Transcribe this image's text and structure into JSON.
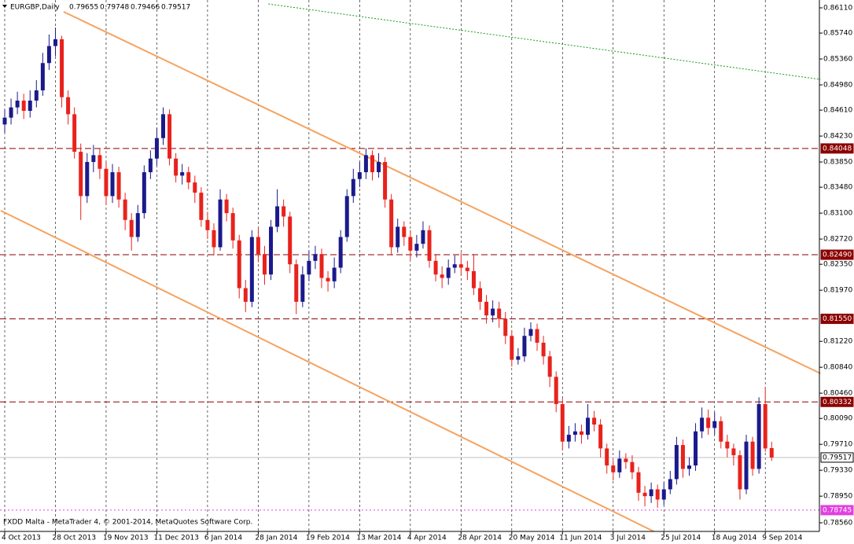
{
  "chart_data": {
    "type": "candlestick",
    "header": {
      "symbol": "EURGBP,Daily",
      "values": [
        0.79655,
        0.79748,
        0.79466,
        0.79517
      ]
    },
    "footer": "FXDD Malta - MetaTrader 4, © 2001-2014, MetaQuotes Software Corp.",
    "up_color": "#1a1a8c",
    "down_color": "#e8221c",
    "categories": [
      "4 Oct 2013",
      null,
      null,
      null,
      null,
      null,
      null,
      null,
      "28 Oct 2013",
      null,
      null,
      null,
      null,
      null,
      null,
      null,
      "19 Nov 2013",
      null,
      null,
      null,
      null,
      null,
      null,
      null,
      "11 Dec 2013",
      null,
      null,
      null,
      null,
      null,
      null,
      null,
      "6 Jan 2014",
      null,
      null,
      null,
      null,
      null,
      null,
      null,
      "28 Jan 2014",
      null,
      null,
      null,
      null,
      null,
      null,
      null,
      "19 Feb 2014",
      null,
      null,
      null,
      null,
      null,
      null,
      null,
      "13 Mar 2014",
      null,
      null,
      null,
      null,
      null,
      null,
      null,
      "4 Apr 2014",
      null,
      null,
      null,
      null,
      null,
      null,
      null,
      "28 Apr 2014",
      null,
      null,
      null,
      null,
      null,
      null,
      null,
      "20 May 2014",
      null,
      null,
      null,
      null,
      null,
      null,
      null,
      "11 Jun 2014",
      null,
      null,
      null,
      null,
      null,
      null,
      null,
      "3 Jul 2014",
      null,
      null,
      null,
      null,
      null,
      null,
      null,
      "25 Jul 2014",
      null,
      null,
      null,
      null,
      null,
      null,
      null,
      "18 Aug 2014",
      null,
      null,
      null,
      null,
      null,
      null,
      null,
      "9 Sep 2014",
      null
    ],
    "open": [
      0.844,
      0.845,
      0.8465,
      0.8475,
      0.846,
      0.8475,
      0.849,
      0.853,
      0.8555,
      0.8565,
      0.848,
      0.8455,
      0.84,
      0.8335,
      0.8385,
      0.8395,
      0.8375,
      0.8335,
      0.837,
      0.833,
      0.83,
      0.8275,
      0.831,
      0.837,
      0.839,
      0.842,
      0.8455,
      0.839,
      0.8365,
      0.837,
      0.8355,
      0.834,
      0.83,
      0.8285,
      0.826,
      0.833,
      0.831,
      0.827,
      0.82,
      0.818,
      0.8275,
      0.825,
      0.822,
      0.829,
      0.832,
      0.8305,
      0.8235,
      0.818,
      0.822,
      0.824,
      0.825,
      0.8215,
      0.821,
      0.823,
      0.8275,
      0.8335,
      0.836,
      0.837,
      0.8395,
      0.837,
      0.8385,
      0.833,
      0.826,
      0.829,
      0.8275,
      0.8255,
      0.8265,
      0.8285,
      0.824,
      0.822,
      0.8215,
      0.823,
      0.8235,
      0.823,
      0.8225,
      0.82,
      0.818,
      0.816,
      0.817,
      0.8155,
      0.813,
      0.8095,
      0.81,
      0.813,
      0.814,
      0.812,
      0.81,
      0.807,
      0.803,
      0.7975,
      0.7985,
      0.799,
      0.7985,
      0.801,
      0.8,
      0.7965,
      0.794,
      0.793,
      0.795,
      0.7945,
      0.793,
      0.79,
      0.7895,
      0.7905,
      0.789,
      0.7905,
      0.792,
      0.797,
      0.7935,
      0.794,
      0.799,
      0.801,
      0.7995,
      0.8005,
      0.7975,
      0.7965,
      0.7955,
      0.7905,
      0.7975,
      0.7935,
      0.803,
      0.79655
    ],
    "high": [
      0.8462,
      0.8478,
      0.8488,
      0.8485,
      0.849,
      0.8505,
      0.8545,
      0.8572,
      0.8582,
      0.857,
      0.849,
      0.8465,
      0.8412,
      0.8398,
      0.841,
      0.8405,
      0.8385,
      0.8382,
      0.8378,
      0.834,
      0.831,
      0.8322,
      0.838,
      0.8402,
      0.8435,
      0.8465,
      0.8462,
      0.8398,
      0.8382,
      0.8378,
      0.8365,
      0.8348,
      0.8312,
      0.8295,
      0.8345,
      0.8338,
      0.8318,
      0.8278,
      0.8212,
      0.8285,
      0.8288,
      0.8262,
      0.83,
      0.8345,
      0.833,
      0.8312,
      0.8242,
      0.8232,
      0.8255,
      0.8262,
      0.8258,
      0.8225,
      0.8245,
      0.8285,
      0.8345,
      0.8375,
      0.8385,
      0.8405,
      0.8402,
      0.8398,
      0.8392,
      0.8338,
      0.8302,
      0.8298,
      0.8285,
      0.8278,
      0.8298,
      0.8292,
      0.825,
      0.8232,
      0.8242,
      0.8248,
      0.8252,
      0.824,
      0.825,
      0.821,
      0.819,
      0.8182,
      0.818,
      0.8165,
      0.8138,
      0.8112,
      0.8142,
      0.815,
      0.8148,
      0.813,
      0.8108,
      0.8078,
      0.8038,
      0.7998,
      0.8002,
      0.8,
      0.803,
      0.802,
      0.8008,
      0.7972,
      0.7948,
      0.7962,
      0.7958,
      0.7955,
      0.7938,
      0.791,
      0.7915,
      0.7912,
      0.7915,
      0.7932,
      0.7982,
      0.7978,
      0.7952,
      0.8002,
      0.8025,
      0.8022,
      0.8018,
      0.8012,
      0.7985,
      0.7972,
      0.7962,
      0.7985,
      0.7982,
      0.804,
      0.8055,
      0.79748
    ],
    "low": [
      0.8428,
      0.844,
      0.8455,
      0.8448,
      0.845,
      0.8465,
      0.8482,
      0.852,
      0.854,
      0.8465,
      0.844,
      0.839,
      0.83,
      0.8325,
      0.837,
      0.836,
      0.8322,
      0.8325,
      0.8318,
      0.8285,
      0.8255,
      0.8268,
      0.8302,
      0.836,
      0.838,
      0.841,
      0.838,
      0.8355,
      0.8352,
      0.8345,
      0.8325,
      0.829,
      0.8272,
      0.8248,
      0.8255,
      0.8298,
      0.8258,
      0.8185,
      0.8165,
      0.8172,
      0.8238,
      0.8205,
      0.8212,
      0.8282,
      0.829,
      0.8222,
      0.8162,
      0.8172,
      0.821,
      0.8228,
      0.82,
      0.8195,
      0.82,
      0.8222,
      0.8268,
      0.8325,
      0.8348,
      0.836,
      0.8358,
      0.8362,
      0.8318,
      0.8248,
      0.8252,
      0.8262,
      0.8242,
      0.8245,
      0.8258,
      0.823,
      0.821,
      0.82,
      0.8205,
      0.8222,
      0.8218,
      0.8212,
      0.819,
      0.8168,
      0.8148,
      0.815,
      0.8142,
      0.8118,
      0.8085,
      0.8088,
      0.8092,
      0.8122,
      0.8108,
      0.8088,
      0.8055,
      0.8018,
      0.7962,
      0.7965,
      0.7975,
      0.7972,
      0.7978,
      0.799,
      0.7952,
      0.7928,
      0.7918,
      0.7922,
      0.7935,
      0.792,
      0.7888,
      0.788,
      0.7885,
      0.7878,
      0.7882,
      0.7898,
      0.7912,
      0.7922,
      0.7925,
      0.7932,
      0.798,
      0.7985,
      0.7985,
      0.7965,
      0.7952,
      0.794,
      0.789,
      0.7898,
      0.7925,
      0.7928,
      0.796,
      0.79466
    ],
    "close": [
      0.845,
      0.8465,
      0.8475,
      0.846,
      0.8475,
      0.849,
      0.853,
      0.8555,
      0.8565,
      0.848,
      0.8455,
      0.84,
      0.8335,
      0.8385,
      0.8395,
      0.8375,
      0.8335,
      0.837,
      0.833,
      0.83,
      0.8275,
      0.831,
      0.837,
      0.839,
      0.842,
      0.8455,
      0.839,
      0.8365,
      0.837,
      0.8355,
      0.834,
      0.83,
      0.8285,
      0.826,
      0.833,
      0.831,
      0.827,
      0.82,
      0.818,
      0.8275,
      0.825,
      0.822,
      0.829,
      0.832,
      0.8305,
      0.8235,
      0.818,
      0.822,
      0.824,
      0.825,
      0.8215,
      0.821,
      0.823,
      0.8275,
      0.8335,
      0.836,
      0.837,
      0.8395,
      0.837,
      0.8385,
      0.833,
      0.826,
      0.829,
      0.8275,
      0.8255,
      0.8265,
      0.8285,
      0.824,
      0.822,
      0.8215,
      0.823,
      0.8235,
      0.823,
      0.8225,
      0.82,
      0.818,
      0.816,
      0.817,
      0.8155,
      0.813,
      0.8095,
      0.81,
      0.813,
      0.814,
      0.812,
      0.81,
      0.807,
      0.803,
      0.7975,
      0.7985,
      0.799,
      0.7985,
      0.801,
      0.8,
      0.7965,
      0.794,
      0.793,
      0.795,
      0.7945,
      0.793,
      0.79,
      0.7895,
      0.7905,
      0.789,
      0.7905,
      0.792,
      0.797,
      0.7935,
      0.794,
      0.799,
      0.801,
      0.7995,
      0.8005,
      0.7975,
      0.7965,
      0.7955,
      0.7905,
      0.7975,
      0.7935,
      0.803,
      0.7965,
      0.79517
    ],
    "ylim": [
      0.78433,
      0.86225
    ],
    "yticks": [
      {
        "value": 0.8611,
        "label": "0.86110"
      },
      {
        "value": 0.8574,
        "label": "0.85740"
      },
      {
        "value": 0.8536,
        "label": "0.85360"
      },
      {
        "value": 0.8498,
        "label": "0.84980"
      },
      {
        "value": 0.8461,
        "label": "0.84610"
      },
      {
        "value": 0.8423,
        "label": "0.84230"
      },
      {
        "value": 0.8385,
        "label": "0.83850"
      },
      {
        "value": 0.8348,
        "label": "0.83480"
      },
      {
        "value": 0.831,
        "label": "0.83100"
      },
      {
        "value": 0.8272,
        "label": "0.82720"
      },
      {
        "value": 0.8235,
        "label": "0.82350"
      },
      {
        "value": 0.8197,
        "label": "0.81970"
      },
      {
        "value": 0.8122,
        "label": "0.81220"
      },
      {
        "value": 0.8084,
        "label": "0.80840"
      },
      {
        "value": 0.8046,
        "label": "0.80460"
      },
      {
        "value": 0.8009,
        "label": "0.80090"
      },
      {
        "value": 0.7971,
        "label": "0.79710"
      },
      {
        "value": 0.7933,
        "label": "0.79330"
      },
      {
        "value": 0.7895,
        "label": "0.78950"
      },
      {
        "value": 0.7856,
        "label": "0.78560"
      }
    ],
    "levels": [
      {
        "value": 0.84048,
        "color": "#8b0000",
        "style": "dash"
      },
      {
        "value": 0.8249,
        "label": "0.82490",
        "color": "#8b0000",
        "style": "dash"
      },
      {
        "value": 0.8155,
        "label": "0.81550",
        "color": "#8b0000",
        "style": "dash"
      },
      {
        "value": 0.80332,
        "color": "#8b0000",
        "style": "dash"
      },
      {
        "value": 0.79517,
        "color": "#c0c0c0",
        "style": "solid"
      },
      {
        "value": 0.78745,
        "color": "#e040e0",
        "style": "dot"
      }
    ],
    "trendlines": [
      {
        "color": "#f5a35f",
        "from": [
          9.3,
          0.86052
        ],
        "to": [
          128.7,
          0.8075
        ]
      },
      {
        "color": "#f5a35f",
        "from": [
          -0.62,
          0.83136
        ],
        "to": [
          102.4,
          0.78433
        ]
      },
      {
        "color": "#1a9a1a",
        "style": "dot",
        "from": [
          41.6,
          0.86167
        ],
        "to": [
          128.7,
          0.85061
        ]
      }
    ]
  }
}
